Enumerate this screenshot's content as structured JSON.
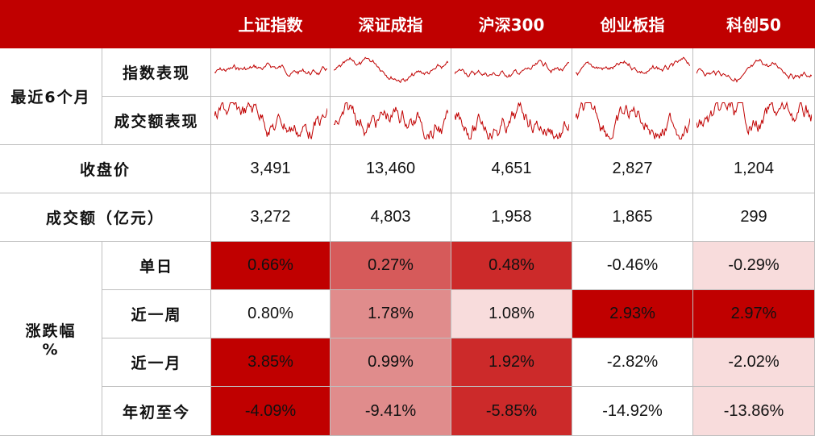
{
  "table": {
    "columns": [
      "上证指数",
      "深证成指",
      "沪深300",
      "创业板指",
      "科创50"
    ],
    "header_fill": "#c00000",
    "sparkline_group": "最近6个月",
    "sparkline_rows": [
      "指数表现",
      "成交额表现"
    ],
    "sparkline_color": "#c00000",
    "rows": [
      {
        "label": "收盘价",
        "cells": [
          "3,491",
          "13,460",
          "4,651",
          "2,827",
          "1,204"
        ]
      },
      {
        "label": "成交额（亿元）",
        "cells": [
          "3,272",
          "4,803",
          "1,958",
          "1,865",
          "299"
        ]
      }
    ],
    "change_group": [
      "涨跌幅",
      "%"
    ],
    "change_rows": [
      {
        "label": "单日",
        "cells": [
          "0.66%",
          "0.27%",
          "0.48%",
          "-0.46%",
          "-0.29%"
        ],
        "fills": [
          "#c00000",
          "#d65a5a",
          "#cc2a2a",
          "#ffffff",
          "#f8dcdc"
        ]
      },
      {
        "label": "近一周",
        "cells": [
          "0.80%",
          "1.78%",
          "1.08%",
          "2.93%",
          "2.97%"
        ],
        "fills": [
          "#ffffff",
          "#e08c8c",
          "#f8dcdc",
          "#c00000",
          "#c00000"
        ]
      },
      {
        "label": "近一月",
        "cells": [
          "3.85%",
          "0.99%",
          "1.92%",
          "-2.82%",
          "-2.02%"
        ],
        "fills": [
          "#c00000",
          "#e08c8c",
          "#cc2a2a",
          "#ffffff",
          "#f8dcdc"
        ]
      },
      {
        "label": "年初至今",
        "cells": [
          "-4.09%",
          "-9.41%",
          "-5.85%",
          "-14.92%",
          "-13.86%"
        ],
        "fills": [
          "#c00000",
          "#e08c8c",
          "#cc2a2a",
          "#ffffff",
          "#f8dcdc"
        ]
      }
    ]
  }
}
